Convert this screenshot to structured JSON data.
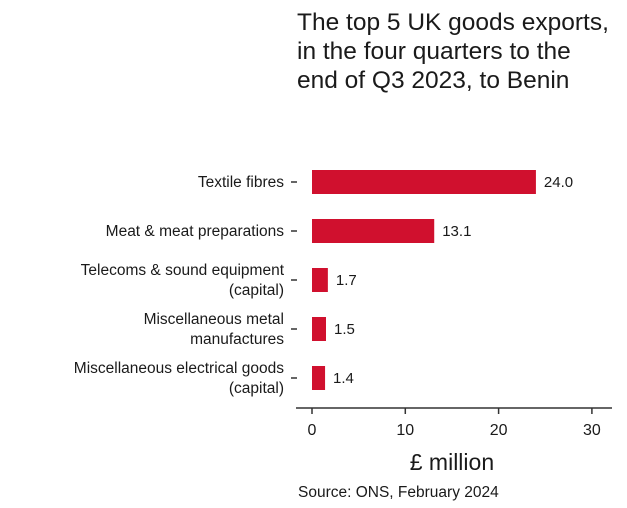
{
  "chart_data": {
    "type": "bar",
    "orientation": "horizontal",
    "title": "The top 5 UK goods exports, in the four quarters to the end of Q3 2023, to Benin",
    "categories": [
      [
        "Textile fibres"
      ],
      [
        "Meat & meat preparations"
      ],
      [
        "Telecoms & sound equipment",
        "(capital)"
      ],
      [
        "Miscellaneous metal",
        "manufactures"
      ],
      [
        "Miscellaneous electrical goods",
        "(capital)"
      ]
    ],
    "values": [
      24.0,
      13.1,
      1.7,
      1.5,
      1.4
    ],
    "value_labels": [
      "24.0",
      "13.1",
      "1.7",
      "1.5",
      "1.4"
    ],
    "xlabel": "£ million",
    "xlim": [
      0,
      30
    ],
    "xticks": [
      0,
      10,
      20,
      30
    ],
    "bar_color": "#d0102e",
    "grid": false,
    "source": "Source: ONS, February 2024"
  }
}
